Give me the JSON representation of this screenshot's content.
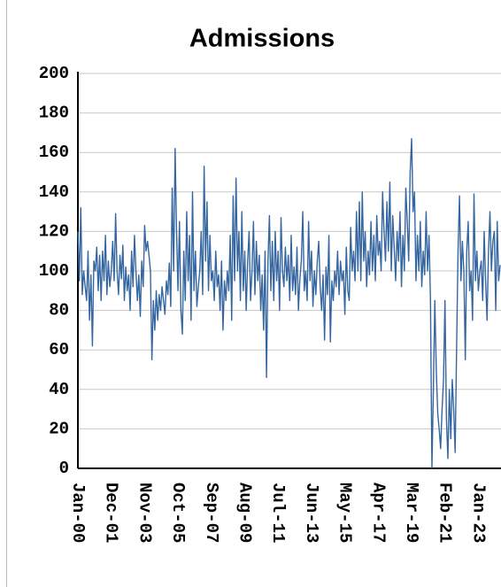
{
  "chart_data": {
    "type": "line",
    "title": "Admissions",
    "categories": [
      "Jan-00",
      null,
      null,
      null,
      null,
      null,
      null,
      null,
      null,
      null,
      null,
      null,
      null,
      null,
      null,
      null,
      null,
      null,
      null,
      null,
      null,
      null,
      null,
      "Dec-01",
      null,
      null,
      null,
      null,
      null,
      null,
      null,
      null,
      null,
      null,
      null,
      null,
      null,
      null,
      null,
      null,
      null,
      null,
      null,
      null,
      null,
      null,
      "Nov-03",
      null,
      null,
      null,
      null,
      null,
      null,
      null,
      null,
      null,
      null,
      null,
      null,
      null,
      null,
      null,
      null,
      null,
      null,
      null,
      null,
      null,
      null,
      "Oct-05",
      null,
      null,
      null,
      null,
      null,
      null,
      null,
      null,
      null,
      null,
      null,
      null,
      null,
      null,
      null,
      null,
      null,
      null,
      null,
      null,
      null,
      null,
      "Sep-07",
      null,
      null,
      null,
      null,
      null,
      null,
      null,
      null,
      null,
      null,
      null,
      null,
      null,
      null,
      null,
      null,
      null,
      null,
      null,
      null,
      null,
      null,
      "Aug-09",
      null,
      null,
      null,
      null,
      null,
      null,
      null,
      null,
      null,
      null,
      null,
      null,
      null,
      null,
      null,
      null,
      null,
      null,
      null,
      null,
      null,
      null,
      "Jul-11",
      null,
      null,
      null,
      null,
      null,
      null,
      null,
      null,
      null,
      null,
      null,
      null,
      null,
      null,
      null,
      null,
      null,
      null,
      null,
      null,
      null,
      null,
      "Jun-13",
      null,
      null,
      null,
      null,
      null,
      null,
      null,
      null,
      null,
      null,
      null,
      null,
      null,
      null,
      null,
      null,
      null,
      null,
      null,
      null,
      null,
      null,
      "May-15",
      null,
      null,
      null,
      null,
      null,
      null,
      null,
      null,
      null,
      null,
      null,
      null,
      null,
      null,
      null,
      null,
      null,
      null,
      null,
      null,
      null,
      null,
      "Apr-17",
      null,
      null,
      null,
      null,
      null,
      null,
      null,
      null,
      null,
      null,
      null,
      null,
      null,
      null,
      null,
      null,
      null,
      null,
      null,
      null,
      null,
      null,
      "Mar-19",
      null,
      null,
      null,
      null,
      null,
      null,
      null,
      null,
      null,
      null,
      null,
      null,
      null,
      null,
      null,
      null,
      null,
      null,
      null,
      null,
      null,
      null,
      "Feb-21",
      null,
      null,
      null,
      null,
      null,
      null,
      null,
      null,
      null,
      null,
      null,
      null,
      null,
      null,
      null,
      null,
      null,
      null,
      null,
      null,
      null,
      null,
      "Jan-23",
      null,
      null,
      null,
      null,
      null,
      null,
      null,
      null,
      null,
      null,
      null,
      null,
      null,
      null,
      null
    ],
    "values": [
      120,
      95,
      132,
      88,
      100,
      92,
      85,
      110,
      75,
      98,
      62,
      105,
      100,
      112,
      90,
      108,
      85,
      110,
      95,
      118,
      88,
      105,
      92,
      100,
      115,
      95,
      129,
      100,
      88,
      108,
      96,
      113,
      85,
      102,
      90,
      98,
      80,
      110,
      92,
      118,
      100,
      85,
      98,
      77,
      105,
      92,
      123,
      110,
      115,
      108,
      100,
      55,
      85,
      70,
      90,
      75,
      88,
      80,
      92,
      85,
      78,
      95,
      88,
      104,
      82,
      142,
      100,
      162,
      120,
      90,
      125,
      80,
      68,
      110,
      85,
      130,
      95,
      118,
      75,
      140,
      90,
      110,
      82,
      92,
      100,
      120,
      88,
      153,
      105,
      135,
      90,
      118,
      95,
      100,
      85,
      110,
      92,
      98,
      80,
      105,
      70,
      95,
      85,
      100,
      90,
      118,
      75,
      138,
      95,
      147,
      100,
      120,
      85,
      130,
      90,
      110,
      80,
      105,
      120,
      85,
      100,
      125,
      88,
      115,
      95,
      108,
      80,
      98,
      70,
      110,
      46,
      105,
      128,
      90,
      115,
      85,
      120,
      95,
      110,
      80,
      127,
      100,
      92,
      112,
      95,
      108,
      85,
      118,
      90,
      102,
      88,
      112,
      80,
      96,
      105,
      130,
      90,
      100,
      85,
      125,
      95,
      110,
      82,
      100,
      88,
      105,
      115,
      92,
      80,
      98,
      65,
      102,
      88,
      118,
      64,
      95,
      85,
      100,
      92,
      110,
      88,
      105,
      95,
      100,
      78,
      112,
      90,
      85,
      122,
      100,
      110,
      95,
      130,
      100,
      135,
      95,
      140,
      105,
      120,
      92,
      110,
      98,
      125,
      100,
      118,
      95,
      128,
      108,
      115,
      100,
      140,
      120,
      105,
      135,
      110,
      145,
      100,
      128,
      112,
      95,
      120,
      105,
      130,
      92,
      118,
      100,
      142,
      125,
      105,
      150,
      167,
      130,
      140,
      95,
      118,
      100,
      125,
      92,
      110,
      98,
      130,
      100,
      118,
      85,
      0,
      40,
      85,
      50,
      28,
      20,
      10,
      30,
      45,
      85,
      25,
      5,
      40,
      15,
      45,
      30,
      8,
      60,
      110,
      138,
      95,
      115,
      100,
      55,
      110,
      125,
      90,
      100,
      75,
      139,
      95,
      110,
      90,
      100,
      105,
      85,
      120,
      95,
      75,
      110,
      130,
      100,
      115,
      120,
      80,
      125,
      95,
      103
    ],
    "color": "#3566a0",
    "ylim": [
      0,
      200
    ],
    "yticks": [
      0,
      20,
      40,
      60,
      80,
      100,
      120,
      140,
      160,
      180,
      200
    ],
    "grid": true
  }
}
